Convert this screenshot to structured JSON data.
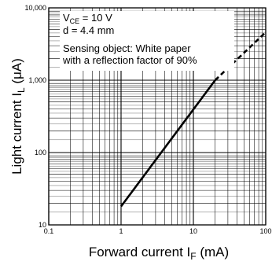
{
  "chart_data": {
    "type": "line",
    "x_scale": "log",
    "y_scale": "log",
    "xlim": [
      0.1,
      100
    ],
    "ylim": [
      10,
      10000
    ],
    "grid": true,
    "xlabel": {
      "main": "Forward current I",
      "sub": "F",
      "unit": " (mA)"
    },
    "ylabel": {
      "main": "Light current  I",
      "sub": "L",
      "unit": " (μA)"
    },
    "x_ticks": [
      {
        "value": 0.1,
        "label": "0.1"
      },
      {
        "value": 1,
        "label": "1"
      },
      {
        "value": 10,
        "label": "10"
      },
      {
        "value": 100,
        "label": "100"
      }
    ],
    "y_ticks": [
      {
        "value": 10,
        "label": "10"
      },
      {
        "value": 100,
        "label": "100"
      },
      {
        "value": 1000,
        "label": "1,000"
      },
      {
        "value": 10000,
        "label": "10,000"
      }
    ],
    "series": [
      {
        "style": "solid",
        "x": [
          1,
          20
        ],
        "y": [
          18,
          1000
        ]
      },
      {
        "style": "dashed",
        "x": [
          20,
          100
        ],
        "y": [
          1000,
          4600
        ]
      }
    ],
    "annotations": [
      {
        "main": "V",
        "sub": "CE",
        "rest": " = 10 V"
      },
      {
        "main": "d = 4.4 mm",
        "sub": "",
        "rest": ""
      },
      {
        "main": "Sensing object: White paper",
        "sub": "",
        "rest": ""
      },
      {
        "main": "with a reflection factor of 90%",
        "sub": "",
        "rest": ""
      }
    ]
  }
}
